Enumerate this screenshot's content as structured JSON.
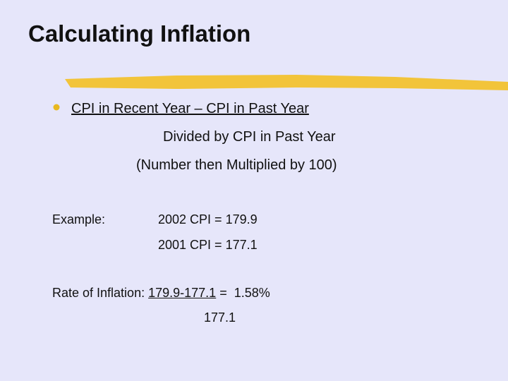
{
  "title": "Calculating Inflation",
  "formula": {
    "numerator": "CPI in Recent Year – CPI in Past Year",
    "divisor": "Divided by CPI in Past Year",
    "multiplier": "(Number then Multiplied by 100)"
  },
  "example": {
    "label": "Example:",
    "lines": [
      "2002 CPI = 179.9",
      "2001 CPI = 177.1"
    ]
  },
  "rate": {
    "label": "Rate of Inflation:",
    "numerator": "179.9-177.1",
    "result": "=  1.58%",
    "denominator": "177.1"
  }
}
